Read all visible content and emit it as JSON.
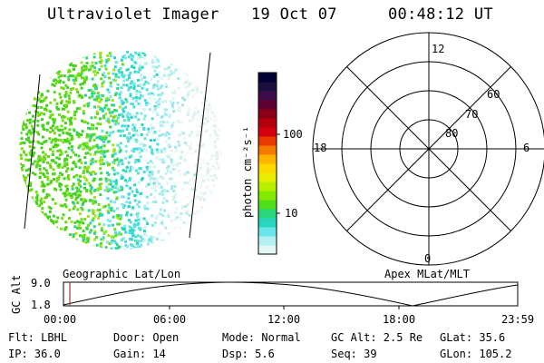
{
  "header": {
    "title": "Ultraviolet Imager",
    "date": "19 Oct 07",
    "time": "00:48:12 UT"
  },
  "colorbar": {
    "unit_label": "photon cm⁻²s⁻¹",
    "ticks": [
      "100",
      "10"
    ],
    "colors": [
      "#000033",
      "#1a1040",
      "#3d0a4a",
      "#5e0030",
      "#8a0016",
      "#b3000a",
      "#d4000e",
      "#e63a00",
      "#f57a00",
      "#ffb400",
      "#ffd800",
      "#e8ec00",
      "#b8ee00",
      "#84e800",
      "#4fde1a",
      "#2bd67a",
      "#29d6c0",
      "#69e6ec",
      "#b4f0f2",
      "#e2f6f4"
    ]
  },
  "polar": {
    "labels": {
      "top": "12",
      "left": "18",
      "right": "6",
      "bottom": "0"
    },
    "rings": [
      "60",
      "70",
      "80"
    ]
  },
  "timeline": {
    "y_label": "GC Alt",
    "y_ticks": [
      "9.0",
      "1.8"
    ],
    "left_title": "Geographic Lat/Lon",
    "right_title": "Apex MLat/MLT",
    "x_ticks": [
      "00:00",
      "06:00",
      "12:00",
      "18:00",
      "23:59"
    ],
    "marker_color": "#a0302a"
  },
  "info": {
    "row1": [
      "Flt: LBHL",
      "Door: Open",
      "Mode: Normal",
      "GC Alt: 2.5 Re",
      "GLat:  35.6"
    ],
    "row2": [
      "IP: 36.0",
      "Gain: 14",
      "Dsp:   5.6",
      "Seq: 39",
      "GLon: 105.2"
    ]
  }
}
